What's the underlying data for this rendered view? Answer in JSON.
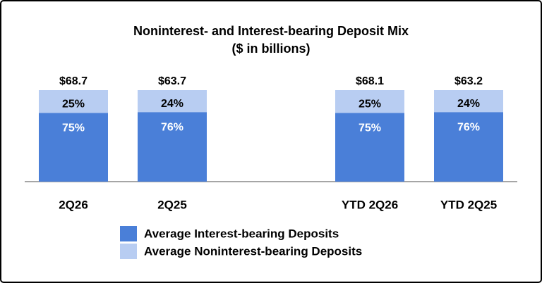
{
  "chart_data": {
    "type": "stacked_bar",
    "title": "Noninterest- and Interest-bearing Deposit Mix",
    "subtitle": "($ in billions)",
    "categories": [
      "2Q26",
      "2Q25",
      null,
      "YTD 2Q26",
      "YTD 2Q25"
    ],
    "ylim": [
      0,
      100
    ],
    "series": [
      {
        "name": "Average Interest-bearing Deposits",
        "color": "#4a7fd8",
        "values": [
          75,
          76,
          null,
          75,
          76
        ],
        "value_labels": [
          "75%",
          "76%",
          null,
          "75%",
          "76%"
        ]
      },
      {
        "name": "Average Noninterest-bearing Deposits",
        "color": "#b8cdf2",
        "values": [
          25,
          24,
          null,
          25,
          24
        ],
        "value_labels": [
          "25%",
          "24%",
          null,
          "25%",
          "24%"
        ]
      }
    ],
    "totals": {
      "values": [
        68.7,
        63.7,
        null,
        68.1,
        63.2
      ],
      "value_labels": [
        "$68.7",
        "$63.7",
        null,
        "$68.1",
        "$63.2"
      ]
    }
  }
}
